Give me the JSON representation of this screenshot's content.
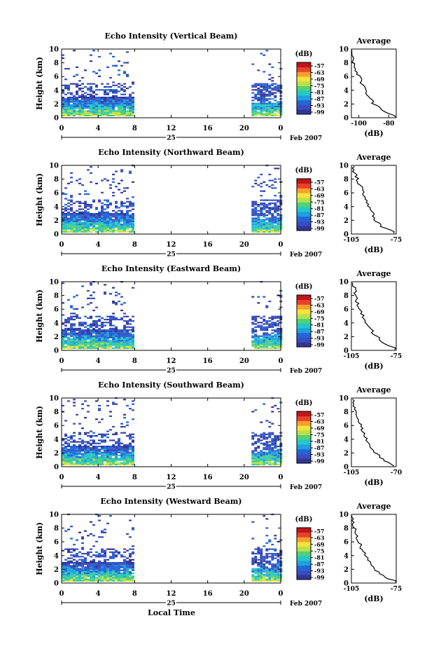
{
  "figure": {
    "xlabel": "Local Time",
    "date_label": "Feb 2007",
    "day_label": "25",
    "colorbar_unit": "(dB)",
    "avg_title": "Average",
    "avg_xlabel": "(dB)"
  },
  "colors": {
    "scale": [
      "#313695",
      "#3b4cc0",
      "#2166d8",
      "#1f9fe0",
      "#22c8c8",
      "#4fd07a",
      "#b8e04a",
      "#f2e43a",
      "#f8a02c",
      "#e8432a",
      "#c0161a"
    ]
  },
  "chart_data": [
    {
      "type": "heatmap",
      "title": "Echo Intensity (Vertical Beam)",
      "ylabel": "Height (km)",
      "xlim": [
        0,
        24
      ],
      "ylim": [
        0,
        10
      ],
      "xticks": [
        "0",
        "4",
        "8",
        "12",
        "16",
        "20",
        "0"
      ],
      "yticks": [
        "0",
        "2",
        "4",
        "6",
        "8",
        "10"
      ],
      "colorbar_ticks": [
        "-57",
        "-63",
        "-69",
        "-75",
        "-81",
        "-87",
        "-93",
        "-99"
      ],
      "data_blocks_hours": [
        [
          0,
          8
        ],
        [
          20.8,
          24
        ]
      ],
      "average": {
        "type": "line",
        "xlim": [
          -105,
          -75
        ],
        "xticks": [
          "-100",
          "-80"
        ],
        "yticks": [
          "0",
          "2",
          "4",
          "6",
          "8",
          "10"
        ],
        "height_km": [
          0.3,
          1,
          2,
          3,
          4,
          5,
          6,
          7,
          8,
          9,
          9.8
        ],
        "db": [
          -76,
          -84,
          -90,
          -93,
          -96,
          -98,
          -100,
          -102,
          -104,
          -105,
          -105
        ]
      }
    },
    {
      "type": "heatmap",
      "title": "Echo Intensity (Northward Beam)",
      "ylabel": "Height (km)",
      "xlim": [
        0,
        24
      ],
      "ylim": [
        0,
        10
      ],
      "xticks": [
        "0",
        "4",
        "8",
        "12",
        "16",
        "20",
        "0"
      ],
      "yticks": [
        "0",
        "2",
        "4",
        "6",
        "8",
        "10"
      ],
      "colorbar_ticks": [
        "-57",
        "-63",
        "-69",
        "-75",
        "-81",
        "-87",
        "-93",
        "-99"
      ],
      "data_blocks_hours": [
        [
          0,
          8
        ],
        [
          20.8,
          24
        ]
      ],
      "average": {
        "type": "line",
        "xlim": [
          -105,
          -75
        ],
        "xticks": [
          "-105",
          "-75"
        ],
        "yticks": [
          "0",
          "2",
          "4",
          "6",
          "8",
          "10"
        ],
        "height_km": [
          0.3,
          1,
          2,
          3,
          4,
          5,
          6,
          7,
          8,
          9,
          9.8
        ],
        "db": [
          -76,
          -84,
          -89,
          -91,
          -93,
          -95,
          -97,
          -99,
          -101,
          -103,
          -104
        ]
      }
    },
    {
      "type": "heatmap",
      "title": "Echo Intensity (Eastward Beam)",
      "ylabel": "Height (km)",
      "xlim": [
        0,
        24
      ],
      "ylim": [
        0,
        10
      ],
      "xticks": [
        "0",
        "4",
        "8",
        "12",
        "16",
        "20",
        "0"
      ],
      "yticks": [
        "0",
        "2",
        "4",
        "6",
        "8",
        "10"
      ],
      "colorbar_ticks": [
        "-57",
        "-63",
        "-69",
        "-75",
        "-81",
        "-87",
        "-93",
        "-99"
      ],
      "data_blocks_hours": [
        [
          0,
          8
        ],
        [
          20.8,
          24
        ]
      ],
      "average": {
        "type": "line",
        "xlim": [
          -105,
          -75
        ],
        "xticks": [
          "-105",
          "-75"
        ],
        "yticks": [
          "0",
          "2",
          "4",
          "6",
          "8",
          "10"
        ],
        "height_km": [
          0.3,
          1,
          2,
          3,
          4,
          5,
          6,
          7,
          8,
          9,
          9.8
        ],
        "db": [
          -76,
          -83,
          -88,
          -92,
          -95,
          -97,
          -99,
          -101,
          -102,
          -103,
          -104
        ]
      }
    },
    {
      "type": "heatmap",
      "title": "Echo Intensity (Southward Beam)",
      "ylabel": "Height (km)",
      "xlim": [
        0,
        24
      ],
      "ylim": [
        0,
        10
      ],
      "xticks": [
        "0",
        "4",
        "8",
        "12",
        "16",
        "20",
        "0"
      ],
      "yticks": [
        "0",
        "2",
        "4",
        "6",
        "8",
        "10"
      ],
      "colorbar_ticks": [
        "-57",
        "-63",
        "-69",
        "-75",
        "-81",
        "-87",
        "-93",
        "-99"
      ],
      "data_blocks_hours": [
        [
          0,
          8
        ],
        [
          20.8,
          24
        ]
      ],
      "average": {
        "type": "line",
        "xlim": [
          -105,
          -70
        ],
        "xticks": [
          "-105",
          "-70"
        ],
        "yticks": [
          "0",
          "2",
          "4",
          "6",
          "8",
          "10"
        ],
        "height_km": [
          0.3,
          1,
          2,
          3,
          4,
          5,
          6,
          7,
          8,
          9,
          9.8
        ],
        "db": [
          -72,
          -80,
          -86,
          -90,
          -93,
          -96,
          -98,
          -100,
          -102,
          -103,
          -104
        ]
      }
    },
    {
      "type": "heatmap",
      "title": "Echo Intensity (Westward Beam)",
      "ylabel": "Height (km)",
      "xlim": [
        0,
        24
      ],
      "ylim": [
        0,
        10
      ],
      "xticks": [
        "0",
        "4",
        "8",
        "12",
        "16",
        "20",
        "0"
      ],
      "yticks": [
        "0",
        "2",
        "4",
        "6",
        "8",
        "10"
      ],
      "colorbar_ticks": [
        "-57",
        "-63",
        "-69",
        "-75",
        "-81",
        "-87",
        "-93",
        "-99"
      ],
      "data_blocks_hours": [
        [
          0,
          8
        ],
        [
          20.8,
          24
        ]
      ],
      "average": {
        "type": "line",
        "xlim": [
          -105,
          -75
        ],
        "xticks": [
          "-105",
          "-75"
        ],
        "yticks": [
          "0",
          "2",
          "4",
          "6",
          "8",
          "10"
        ],
        "height_km": [
          0.3,
          1,
          2,
          3,
          4,
          5,
          6,
          7,
          8,
          9,
          9.8
        ],
        "db": [
          -76,
          -84,
          -89,
          -93,
          -96,
          -98,
          -100,
          -102,
          -103,
          -104,
          -105
        ]
      }
    }
  ]
}
